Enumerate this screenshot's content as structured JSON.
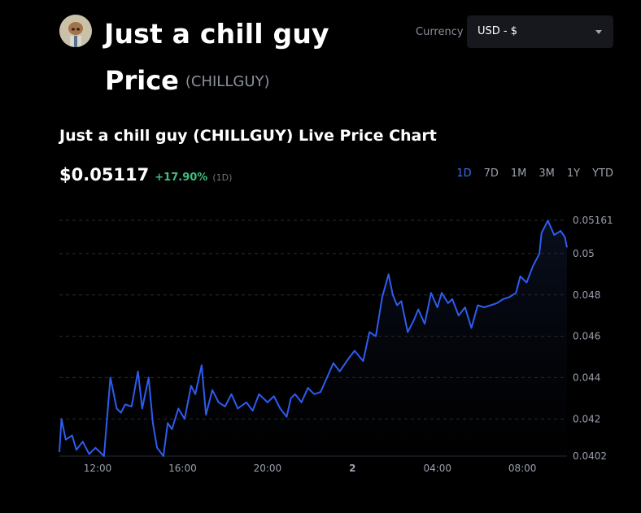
{
  "header": {
    "coin_name": "Just a chill guy",
    "price_word": "Price",
    "symbol": "(CHILLGUY)"
  },
  "currency": {
    "label": "Currency",
    "selected": "USD - $"
  },
  "chart_section": {
    "title": "Just a chill guy (CHILLGUY) Live Price Chart",
    "price": "$0.05117",
    "change": "+17.90%",
    "period": "(1D)",
    "ranges": [
      {
        "label": "1D",
        "active": true
      },
      {
        "label": "7D",
        "active": false
      },
      {
        "label": "1M",
        "active": false
      },
      {
        "label": "3M",
        "active": false
      },
      {
        "label": "1Y",
        "active": false
      },
      {
        "label": "YTD",
        "active": false
      }
    ]
  },
  "colors": {
    "line": "#2e5cf0",
    "positive": "#3fbf7f",
    "active_range": "#3a6df0"
  },
  "chart_data": {
    "type": "area",
    "x_tick_labels": [
      "12:00",
      "16:00",
      "20:00",
      "2",
      "04:00",
      "08:00"
    ],
    "x_tick_hours": [
      12,
      16,
      20,
      24,
      28,
      32
    ],
    "y_tick_labels": [
      "0.05161",
      "0.05",
      "0.048",
      "0.046",
      "0.044",
      "0.042",
      "0.0402"
    ],
    "y_tick_values": [
      0.05161,
      0.05,
      0.048,
      0.046,
      0.044,
      0.042,
      0.0402
    ],
    "ylim": [
      0.0402,
      0.05161
    ],
    "xlim": [
      10.2,
      34.1
    ],
    "grid": true,
    "x": [
      10.2,
      10.3,
      10.5,
      10.8,
      11.0,
      11.3,
      11.6,
      11.9,
      12.3,
      12.6,
      12.9,
      13.1,
      13.3,
      13.6,
      13.9,
      14.1,
      14.4,
      14.6,
      14.8,
      15.1,
      15.3,
      15.5,
      15.8,
      16.1,
      16.4,
      16.6,
      16.9,
      17.1,
      17.4,
      17.7,
      18.0,
      18.3,
      18.6,
      19.0,
      19.3,
      19.6,
      20.0,
      20.3,
      20.6,
      20.9,
      21.1,
      21.3,
      21.6,
      21.9,
      22.2,
      22.5,
      22.8,
      23.1,
      23.4,
      23.8,
      24.1,
      24.5,
      24.8,
      25.1,
      25.4,
      25.7,
      25.9,
      26.1,
      26.3,
      26.6,
      26.9,
      27.1,
      27.4,
      27.7,
      28.0,
      28.2,
      28.5,
      28.7,
      29.0,
      29.3,
      29.6,
      29.9,
      30.2,
      30.5,
      30.8,
      31.1,
      31.4,
      31.7,
      31.9,
      32.2,
      32.5,
      32.8,
      32.9,
      33.2,
      33.5,
      33.8,
      34.0,
      34.1
    ],
    "y": [
      0.0404,
      0.042,
      0.041,
      0.0412,
      0.0405,
      0.0409,
      0.0403,
      0.0406,
      0.0402,
      0.044,
      0.0425,
      0.0423,
      0.0427,
      0.0426,
      0.0443,
      0.0425,
      0.044,
      0.0418,
      0.0406,
      0.0402,
      0.0418,
      0.0415,
      0.0425,
      0.042,
      0.0436,
      0.0432,
      0.0446,
      0.0422,
      0.0434,
      0.0428,
      0.0426,
      0.0432,
      0.0425,
      0.0428,
      0.0424,
      0.0432,
      0.0428,
      0.0431,
      0.0425,
      0.0421,
      0.043,
      0.0432,
      0.0428,
      0.0435,
      0.0432,
      0.0433,
      0.044,
      0.0447,
      0.0443,
      0.0449,
      0.0453,
      0.0448,
      0.0462,
      0.046,
      0.0479,
      0.049,
      0.048,
      0.0475,
      0.0477,
      0.0462,
      0.0468,
      0.0473,
      0.0466,
      0.0481,
      0.0474,
      0.0481,
      0.0476,
      0.0478,
      0.047,
      0.0474,
      0.0464,
      0.0475,
      0.0474,
      0.0475,
      0.0476,
      0.0478,
      0.0479,
      0.0481,
      0.0489,
      0.0486,
      0.0494,
      0.05,
      0.051,
      0.0516,
      0.0509,
      0.0511,
      0.0508,
      0.0503
    ]
  }
}
